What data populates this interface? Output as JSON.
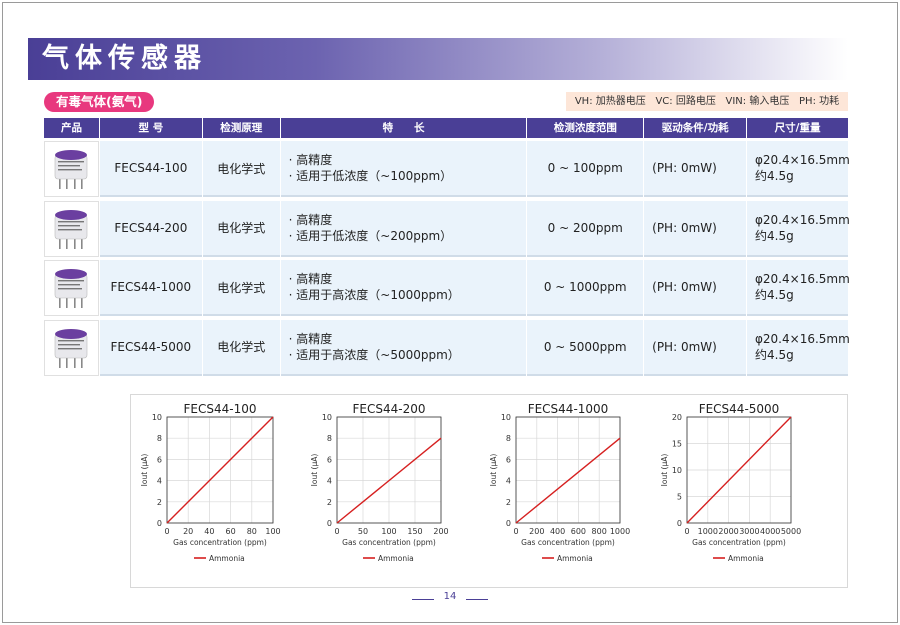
{
  "banner": {
    "title": "气体传感器"
  },
  "section": {
    "label": "有毒气体(氨气)"
  },
  "legend": [
    {
      "label": "VH: 加热器电压"
    },
    {
      "label": "VC: 回路电压"
    },
    {
      "label": "VIN: 输入电压"
    },
    {
      "label": "PH: 功耗"
    }
  ],
  "table": {
    "headers": [
      "产品",
      "型 号",
      "检测原理",
      "特　　长",
      "检测浓度范围",
      "驱动条件/功耗",
      "尺寸/重量"
    ],
    "rows": [
      {
        "model": "FECS44-100",
        "principle": "电化学式",
        "feat1": "· 高精度",
        "feat2": "· 适用于低浓度（~100ppm）",
        "range": "0 ~ 100ppm",
        "power": "(PH: 0mW)",
        "size": "φ20.4×16.5mm",
        "weight": "约4.5g"
      },
      {
        "model": "FECS44-200",
        "principle": "电化学式",
        "feat1": "· 高精度",
        "feat2": "· 适用于低浓度（~200ppm）",
        "range": "0 ~ 200ppm",
        "power": "(PH: 0mW)",
        "size": "φ20.4×16.5mm",
        "weight": "约4.5g"
      },
      {
        "model": "FECS44-1000",
        "principle": "电化学式",
        "feat1": "· 高精度",
        "feat2": "· 适用于高浓度（~1000ppm）",
        "range": "0 ~ 1000ppm",
        "power": "(PH: 0mW)",
        "size": "φ20.4×16.5mm",
        "weight": "约4.5g"
      },
      {
        "model": "FECS44-5000",
        "principle": "电化学式",
        "feat1": "· 高精度",
        "feat2": "· 适用于高浓度（~5000ppm）",
        "range": "0 ~ 5000ppm",
        "power": "(PH: 0mW)",
        "size": "φ20.4×16.5mm",
        "weight": "约4.5g"
      }
    ]
  },
  "colors": {
    "accent": "#4a3f96",
    "pill": "#e8387e",
    "line": "#d62020"
  },
  "chart_data": [
    {
      "type": "line",
      "title": "FECS44-100",
      "xlabel": "Gas concentration (ppm)",
      "ylabel": "Iout (μA)",
      "xlim": [
        0,
        100
      ],
      "ylim": [
        0,
        10
      ],
      "xticks": [
        "0",
        "20",
        "40",
        "60",
        "80",
        "100"
      ],
      "yticks": [
        "0",
        "2",
        "4",
        "6",
        "8",
        "10"
      ],
      "grid": true,
      "legend": "bottom",
      "series": [
        {
          "name": "Ammonia",
          "x": [
            0,
            100
          ],
          "y": [
            0,
            10
          ]
        }
      ]
    },
    {
      "type": "line",
      "title": "FECS44-200",
      "xlabel": "Gas concentration (ppm)",
      "ylabel": "Iout (μA)",
      "xlim": [
        0,
        200
      ],
      "ylim": [
        0,
        10
      ],
      "xticks": [
        "0",
        "50",
        "100",
        "150",
        "200"
      ],
      "yticks": [
        "0",
        "2",
        "4",
        "6",
        "8",
        "10"
      ],
      "grid": true,
      "legend": "bottom",
      "series": [
        {
          "name": "Ammonia",
          "x": [
            0,
            200
          ],
          "y": [
            0,
            8
          ]
        }
      ]
    },
    {
      "type": "line",
      "title": "FECS44-1000",
      "xlabel": "Gas concentration (ppm)",
      "ylabel": "Iout (μA)",
      "xlim": [
        0,
        1000
      ],
      "ylim": [
        0,
        10
      ],
      "xticks": [
        "0",
        "200",
        "400",
        "600",
        "800",
        "1000"
      ],
      "yticks": [
        "0",
        "2",
        "4",
        "6",
        "8",
        "10"
      ],
      "grid": true,
      "legend": "bottom",
      "series": [
        {
          "name": "Ammonia",
          "x": [
            0,
            1000
          ],
          "y": [
            0,
            8
          ]
        }
      ]
    },
    {
      "type": "line",
      "title": "FECS44-5000",
      "xlabel": "Gas concentration (ppm)",
      "ylabel": "Iout (μA)",
      "xlim": [
        0,
        5000
      ],
      "ylim": [
        0,
        20
      ],
      "xticks": [
        "0",
        "1000",
        "2000",
        "3000",
        "4000",
        "5000"
      ],
      "yticks": [
        "0",
        "5",
        "10",
        "15",
        "20"
      ],
      "grid": true,
      "legend": "bottom",
      "series": [
        {
          "name": "Ammonia",
          "x": [
            0,
            5000
          ],
          "y": [
            0,
            20
          ]
        }
      ]
    }
  ],
  "footer": {
    "page": "14"
  }
}
